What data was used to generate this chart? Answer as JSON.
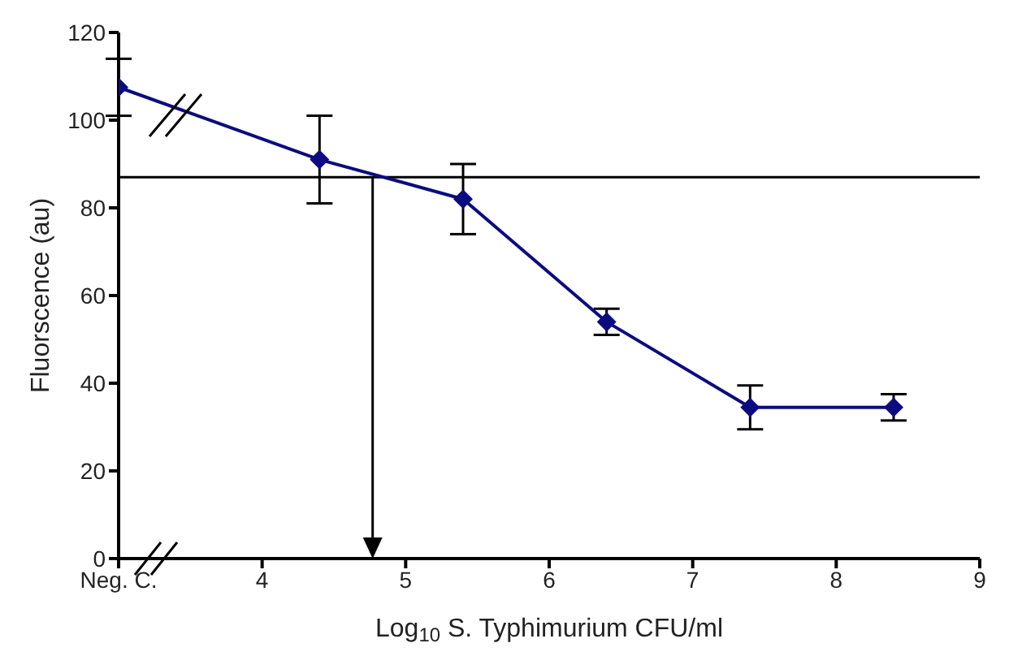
{
  "chart_data": {
    "type": "line",
    "xlabel": "Log$_{10}$ S. Typhimurium CFU/ml",
    "ylabel": "Fluorscence (au)",
    "x": [
      3,
      4.4,
      5.4,
      6.4,
      7.4,
      8.4
    ],
    "series": [
      {
        "color": "#0c0c80",
        "values": [
          107.5,
          91,
          82,
          54,
          34.5,
          34.5
        ],
        "errors": [
          6.5,
          10,
          8,
          3,
          5,
          3
        ]
      }
    ],
    "xlim": [
      3,
      9
    ],
    "xticks": [
      {
        "value": 3,
        "label": "Neg. C."
      },
      4,
      5,
      6,
      7,
      8,
      9
    ],
    "ylim": [
      0,
      120
    ],
    "yticks": [
      0,
      20,
      40,
      60,
      80,
      100,
      120
    ],
    "ref_lines": [
      {
        "axis": "y",
        "value": 87,
        "color": "#000000"
      },
      {
        "axis": "x",
        "value": 4.77,
        "color": "#000000"
      }
    ],
    "marker": "diamond",
    "line_style": "solid"
  }
}
